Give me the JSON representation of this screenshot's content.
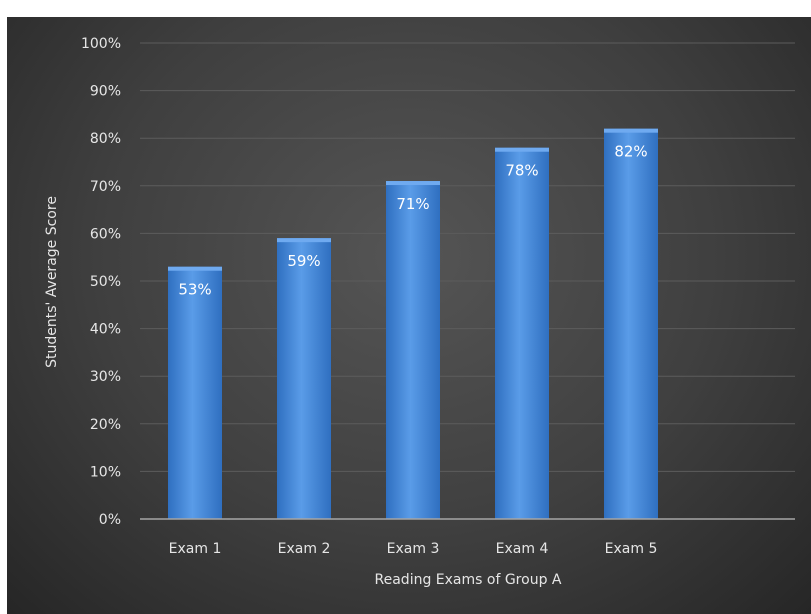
{
  "chart_data": {
    "type": "bar",
    "categories": [
      "Exam 1",
      "Exam 2",
      "Exam 3",
      "Exam 4",
      "Exam 5"
    ],
    "values": [
      53,
      59,
      71,
      78,
      82
    ],
    "data_labels": [
      "53%",
      "59%",
      "71%",
      "78%",
      "82%"
    ],
    "title": "",
    "xlabel": "Reading Exams of Group A",
    "ylabel": "Students' Average Score",
    "ylim": [
      0,
      100
    ],
    "yticks": [
      "0%",
      "10%",
      "20%",
      "30%",
      "40%",
      "50%",
      "60%",
      "70%",
      "80%",
      "90%",
      "100%"
    ],
    "grid": true,
    "legend": "none",
    "colors": {
      "bar": "#4a8fe0",
      "bar_light": "#6faaf0",
      "bar_dark": "#2f6fc0",
      "background": "#3f3f3f",
      "text": "#e6e6e6"
    }
  }
}
